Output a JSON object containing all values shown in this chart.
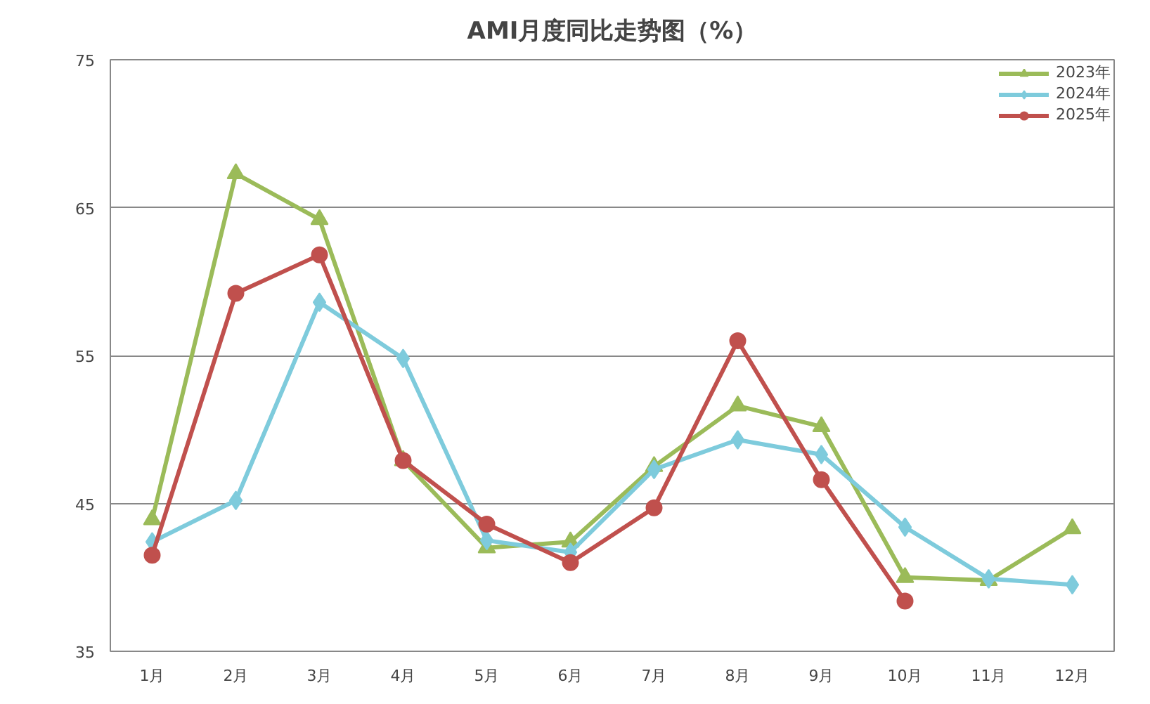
{
  "chart_data": {
    "type": "line",
    "title": "AMI月度同比走势图（%）",
    "categories": [
      "1月",
      "2月",
      "3月",
      "4月",
      "5月",
      "6月",
      "7月",
      "8月",
      "9月",
      "10月",
      "11月",
      "12月"
    ],
    "series": [
      {
        "name": "2023年",
        "color": "#9bbb59",
        "marker": "triangle",
        "values": [
          43.9,
          67.3,
          64.2,
          47.9,
          42.0,
          42.4,
          47.5,
          51.6,
          50.2,
          40.0,
          39.8,
          43.3
        ]
      },
      {
        "name": "2024年",
        "color": "#7ecbdc",
        "marker": "diamond",
        "values": [
          42.4,
          45.2,
          58.6,
          54.8,
          42.5,
          41.7,
          47.3,
          49.3,
          48.3,
          43.4,
          39.9,
          39.5
        ]
      },
      {
        "name": "2025年",
        "color": "#c0504d",
        "marker": "circle",
        "values": [
          41.5,
          59.2,
          61.8,
          47.9,
          43.6,
          41.0,
          44.7,
          56.0,
          46.6,
          38.4,
          null,
          null
        ]
      }
    ],
    "ylim": [
      35,
      75
    ],
    "yticks": [
      35,
      45,
      55,
      65,
      75
    ],
    "grid": "y",
    "legend": "top right"
  }
}
